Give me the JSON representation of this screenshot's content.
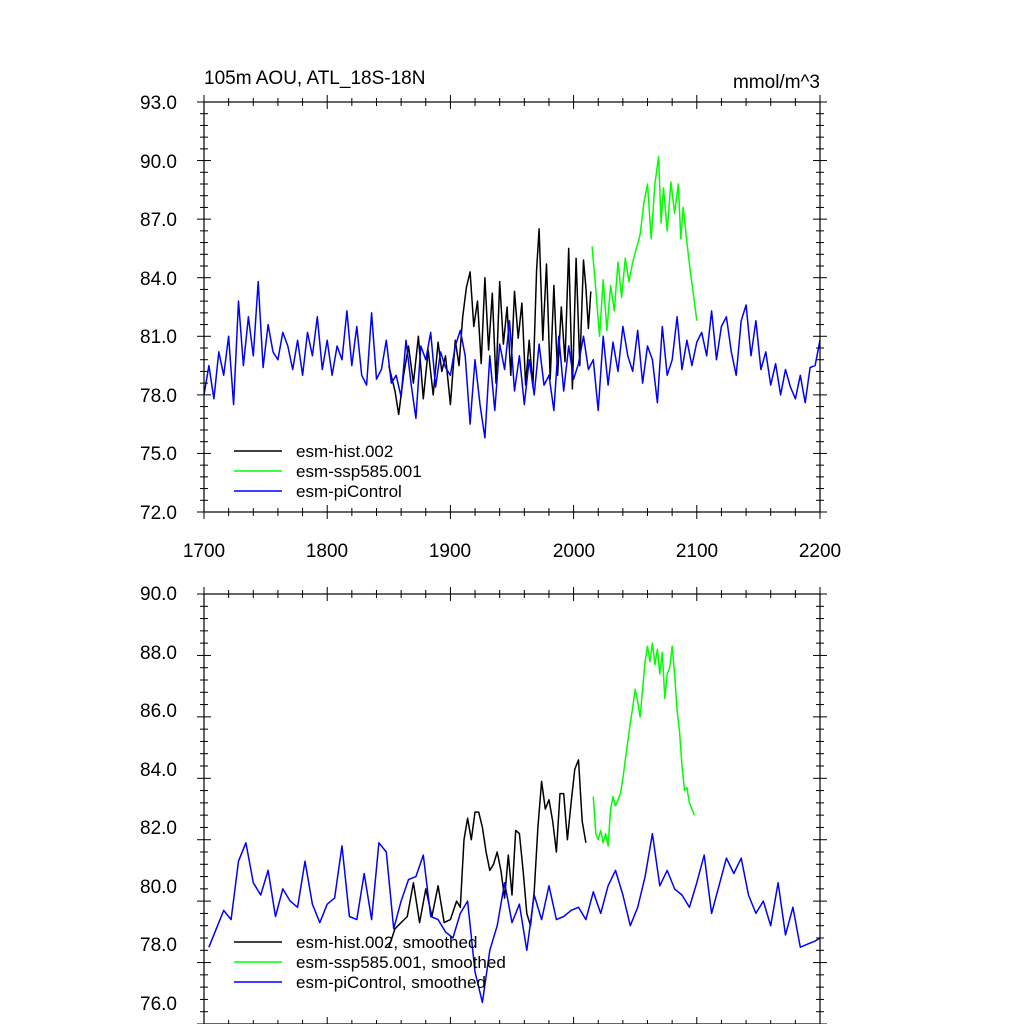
{
  "chart_data": [
    {
      "type": "line",
      "title": "105m AOU, ATL_18S-18N",
      "units": "mmol/m^3",
      "xlim": [
        1700,
        2200
      ],
      "ylim": [
        72,
        93
      ],
      "xticks": [
        1700,
        1800,
        1900,
        2000,
        2100,
        2200
      ],
      "xtick_labels": [
        "1700",
        "1800",
        "1900",
        "2000",
        "2100",
        "2200"
      ],
      "yticks": [
        72,
        75,
        78,
        81,
        84,
        87,
        90,
        93
      ],
      "ytick_labels": [
        "72.0",
        "75.0",
        "78.0",
        "81.0",
        "84.0",
        "87.0",
        "90.0",
        "93.0"
      ],
      "legend_position": "bottom-left",
      "series": [
        {
          "name": "esm-hist.002",
          "color": "#000000",
          "x": [
            1850,
            1855,
            1858,
            1862,
            1866,
            1870,
            1874,
            1878,
            1882,
            1886,
            1890,
            1893,
            1896,
            1900,
            1904,
            1907,
            1910,
            1913,
            1916,
            1919,
            1922,
            1925,
            1928,
            1931,
            1934,
            1937,
            1940,
            1943,
            1946,
            1949,
            1952,
            1955,
            1958,
            1961,
            1964,
            1967,
            1970,
            1972,
            1975,
            1978,
            1981,
            1984,
            1987,
            1990,
            1993,
            1996,
            1999,
            2002,
            2005,
            2008,
            2010,
            2012,
            2014
          ],
          "values": [
            79.5,
            78.2,
            77.0,
            79.0,
            80.5,
            78.6,
            81.0,
            77.8,
            80.3,
            78.0,
            80.7,
            79.2,
            80.0,
            77.5,
            80.8,
            79.5,
            82.0,
            83.5,
            84.3,
            81.5,
            82.8,
            79.6,
            84.0,
            80.3,
            83.2,
            78.6,
            83.8,
            80.6,
            82.5,
            79.0,
            83.3,
            80.9,
            82.7,
            78.5,
            80.8,
            78.4,
            84.4,
            86.5,
            80.8,
            84.7,
            78.8,
            83.6,
            79.0,
            82.5,
            79.7,
            85.5,
            78.3,
            85.0,
            79.5,
            84.9,
            83.5,
            81.4,
            83.3
          ]
        },
        {
          "name": "esm-ssp585.001",
          "color": "#00ff00",
          "x": [
            2015,
            2018,
            2021,
            2024,
            2027,
            2030,
            2033,
            2036,
            2039,
            2042,
            2045,
            2048,
            2051,
            2054,
            2057,
            2060,
            2063,
            2066,
            2069,
            2071,
            2073,
            2076,
            2079,
            2082,
            2085,
            2087,
            2089,
            2092,
            2095,
            2098,
            2100
          ],
          "values": [
            85.6,
            83.4,
            81.0,
            83.9,
            81.3,
            83.6,
            82.3,
            84.8,
            83.0,
            85.0,
            83.8,
            84.8,
            85.5,
            86.2,
            87.8,
            88.8,
            86.0,
            88.8,
            90.2,
            86.8,
            88.6,
            86.4,
            88.9,
            87.3,
            88.8,
            86.0,
            87.6,
            85.8,
            84.2,
            82.8,
            81.8
          ]
        },
        {
          "name": "esm-piControl",
          "color": "#0000ff",
          "x": [
            1700,
            1704,
            1708,
            1712,
            1716,
            1720,
            1724,
            1728,
            1732,
            1736,
            1740,
            1744,
            1748,
            1752,
            1756,
            1760,
            1764,
            1768,
            1772,
            1776,
            1780,
            1784,
            1788,
            1792,
            1796,
            1800,
            1804,
            1808,
            1812,
            1816,
            1820,
            1824,
            1828,
            1832,
            1836,
            1840,
            1844,
            1848,
            1852,
            1856,
            1860,
            1864,
            1868,
            1872,
            1876,
            1880,
            1884,
            1888,
            1892,
            1896,
            1900,
            1904,
            1908,
            1912,
            1916,
            1920,
            1924,
            1928,
            1932,
            1936,
            1940,
            1944,
            1948,
            1952,
            1956,
            1960,
            1964,
            1968,
            1972,
            1976,
            1980,
            1984,
            1988,
            1992,
            1996,
            2000,
            2004,
            2008,
            2012,
            2016,
            2020,
            2024,
            2028,
            2032,
            2036,
            2040,
            2044,
            2048,
            2052,
            2056,
            2060,
            2064,
            2068,
            2072,
            2076,
            2080,
            2084,
            2088,
            2092,
            2096,
            2100,
            2104,
            2108,
            2112,
            2116,
            2120,
            2124,
            2128,
            2132,
            2136,
            2140,
            2144,
            2148,
            2152,
            2156,
            2160,
            2164,
            2168,
            2172,
            2176,
            2180,
            2184,
            2188,
            2192,
            2196,
            2200
          ],
          "values": [
            78.0,
            79.5,
            77.8,
            80.2,
            79.0,
            81.0,
            77.5,
            82.8,
            79.5,
            82.0,
            80.0,
            83.8,
            79.4,
            81.6,
            80.2,
            79.8,
            81.2,
            80.5,
            79.3,
            80.8,
            79.0,
            81.2,
            80.0,
            82.0,
            79.3,
            80.8,
            79.0,
            80.5,
            79.8,
            82.3,
            79.5,
            81.5,
            79.0,
            78.5,
            82.2,
            78.8,
            79.3,
            80.8,
            78.6,
            79.0,
            77.9,
            80.8,
            78.6,
            76.8,
            80.5,
            79.8,
            81.2,
            78.4,
            80.2,
            79.4,
            79.0,
            80.5,
            81.3,
            80.0,
            76.5,
            79.8,
            77.5,
            75.8,
            80.0,
            77.2,
            80.6,
            79.3,
            81.8,
            78.2,
            80.0,
            77.5,
            79.8,
            78.0,
            80.6,
            78.5,
            79.0,
            77.2,
            81.0,
            78.2,
            80.5,
            78.8,
            79.6,
            81.0,
            79.3,
            79.8,
            77.2,
            81.0,
            78.5,
            80.7,
            79.2,
            81.5,
            80.0,
            79.2,
            81.3,
            78.6,
            80.5,
            79.8,
            77.6,
            81.5,
            79.0,
            79.8,
            82.0,
            79.3,
            80.8,
            79.5,
            80.7,
            81.2,
            80.0,
            82.3,
            79.8,
            81.5,
            82.0,
            80.2,
            79.0,
            81.8,
            82.6,
            80.0,
            81.8,
            79.3,
            80.2,
            78.5,
            79.6,
            78.0,
            79.3,
            78.4,
            77.8,
            79.0,
            77.6,
            79.4,
            79.5,
            80.8
          ]
        }
      ]
    },
    {
      "type": "line",
      "title": "",
      "xlim": [
        1700,
        2200
      ],
      "ylim": [
        76,
        90
      ],
      "yticks": [
        76,
        78,
        80,
        82,
        84,
        86,
        88,
        90
      ],
      "ytick_labels": [
        "76.0",
        "78.0",
        "80.0",
        "82.0",
        "84.0",
        "86.0",
        "88.0",
        "90.0"
      ],
      "legend_position": "bottom-left",
      "series": [
        {
          "name": "esm-hist.002, smoothed",
          "color": "#000000",
          "x": [
            1850,
            1855,
            1860,
            1865,
            1870,
            1875,
            1880,
            1885,
            1890,
            1895,
            1900,
            1905,
            1908,
            1911,
            1914,
            1917,
            1920,
            1923,
            1926,
            1929,
            1932,
            1935,
            1938,
            1941,
            1944,
            1947,
            1950,
            1953,
            1956,
            1959,
            1962,
            1965,
            1968,
            1971,
            1974,
            1977,
            1980,
            1983,
            1986,
            1989,
            1992,
            1995,
            1998,
            2001,
            2004,
            2007,
            2010
          ],
          "values": [
            78.5,
            79.1,
            79.3,
            79.5,
            80.6,
            79.3,
            80.4,
            79.5,
            80.5,
            79.3,
            79.4,
            80.0,
            79.8,
            82.0,
            82.7,
            82.0,
            82.9,
            82.9,
            82.4,
            81.6,
            81.0,
            81.2,
            81.6,
            81.0,
            80.1,
            81.5,
            80.2,
            82.3,
            82.2,
            81.0,
            79.6,
            79.2,
            80.3,
            82.4,
            83.9,
            83.0,
            83.3,
            82.6,
            81.6,
            83.5,
            83.5,
            82.0,
            83.2,
            84.3,
            84.6,
            82.6,
            81.9
          ]
        },
        {
          "name": "esm-ssp585.001, smoothed",
          "color": "#00ff00",
          "x": [
            2016,
            2018,
            2020,
            2022,
            2024,
            2026,
            2028,
            2030,
            2032,
            2034,
            2036,
            2038,
            2040,
            2042,
            2044,
            2046,
            2048,
            2050,
            2052,
            2054,
            2056,
            2058,
            2060,
            2062,
            2064,
            2066,
            2068,
            2070,
            2072,
            2074,
            2076,
            2078,
            2080,
            2082,
            2084,
            2086,
            2088,
            2090,
            2092,
            2094,
            2096,
            2098
          ],
          "values": [
            83.4,
            82.2,
            82.0,
            82.3,
            81.9,
            82.2,
            81.8,
            83.0,
            83.4,
            83.1,
            83.3,
            83.5,
            84.0,
            84.6,
            85.2,
            85.8,
            86.3,
            86.9,
            86.5,
            86.0,
            86.9,
            87.8,
            88.3,
            87.8,
            88.4,
            87.7,
            88.2,
            87.4,
            88.1,
            86.6,
            87.4,
            87.6,
            88.3,
            87.4,
            86.2,
            85.5,
            84.4,
            83.6,
            83.7,
            83.2,
            83.0,
            82.8
          ]
        },
        {
          "name": "esm-piControl, smoothed",
          "color": "#0000ff",
          "x": [
            1704,
            1710,
            1716,
            1722,
            1728,
            1734,
            1740,
            1746,
            1752,
            1758,
            1764,
            1770,
            1776,
            1782,
            1788,
            1794,
            1800,
            1806,
            1812,
            1818,
            1824,
            1830,
            1836,
            1842,
            1848,
            1854,
            1860,
            1866,
            1872,
            1878,
            1884,
            1890,
            1896,
            1902,
            1908,
            1914,
            1920,
            1926,
            1932,
            1938,
            1944,
            1950,
            1956,
            1962,
            1968,
            1974,
            1980,
            1986,
            1992,
            1998,
            2004,
            2010,
            2016,
            2022,
            2028,
            2034,
            2040,
            2046,
            2052,
            2058,
            2064,
            2070,
            2076,
            2082,
            2088,
            2094,
            2100,
            2106,
            2112,
            2118,
            2124,
            2130,
            2136,
            2142,
            2148,
            2154,
            2160,
            2166,
            2172,
            2178,
            2184,
            2190,
            2196,
            2200
          ],
          "values": [
            78.5,
            79.1,
            79.7,
            79.4,
            81.3,
            81.9,
            80.6,
            80.2,
            81.0,
            79.5,
            80.4,
            80.0,
            79.8,
            81.3,
            79.9,
            79.3,
            79.9,
            80.1,
            81.8,
            79.5,
            79.4,
            80.9,
            79.4,
            81.9,
            81.6,
            79.1,
            80.0,
            80.7,
            80.8,
            81.5,
            79.5,
            79.4,
            79.0,
            78.8,
            79.6,
            80.0,
            77.7,
            76.7,
            78.4,
            79.2,
            80.6,
            79.3,
            79.9,
            78.4,
            80.2,
            79.4,
            80.5,
            79.4,
            79.5,
            79.7,
            79.8,
            79.4,
            80.3,
            79.6,
            80.5,
            81.0,
            80.2,
            79.2,
            79.8,
            80.8,
            82.2,
            80.5,
            81.0,
            80.4,
            80.2,
            79.8,
            80.6,
            81.5,
            79.6,
            80.5,
            81.4,
            80.9,
            81.4,
            80.2,
            79.6,
            80.0,
            79.2,
            80.6,
            78.9,
            79.8,
            78.5,
            78.6,
            78.7,
            78.8
          ]
        }
      ]
    }
  ]
}
